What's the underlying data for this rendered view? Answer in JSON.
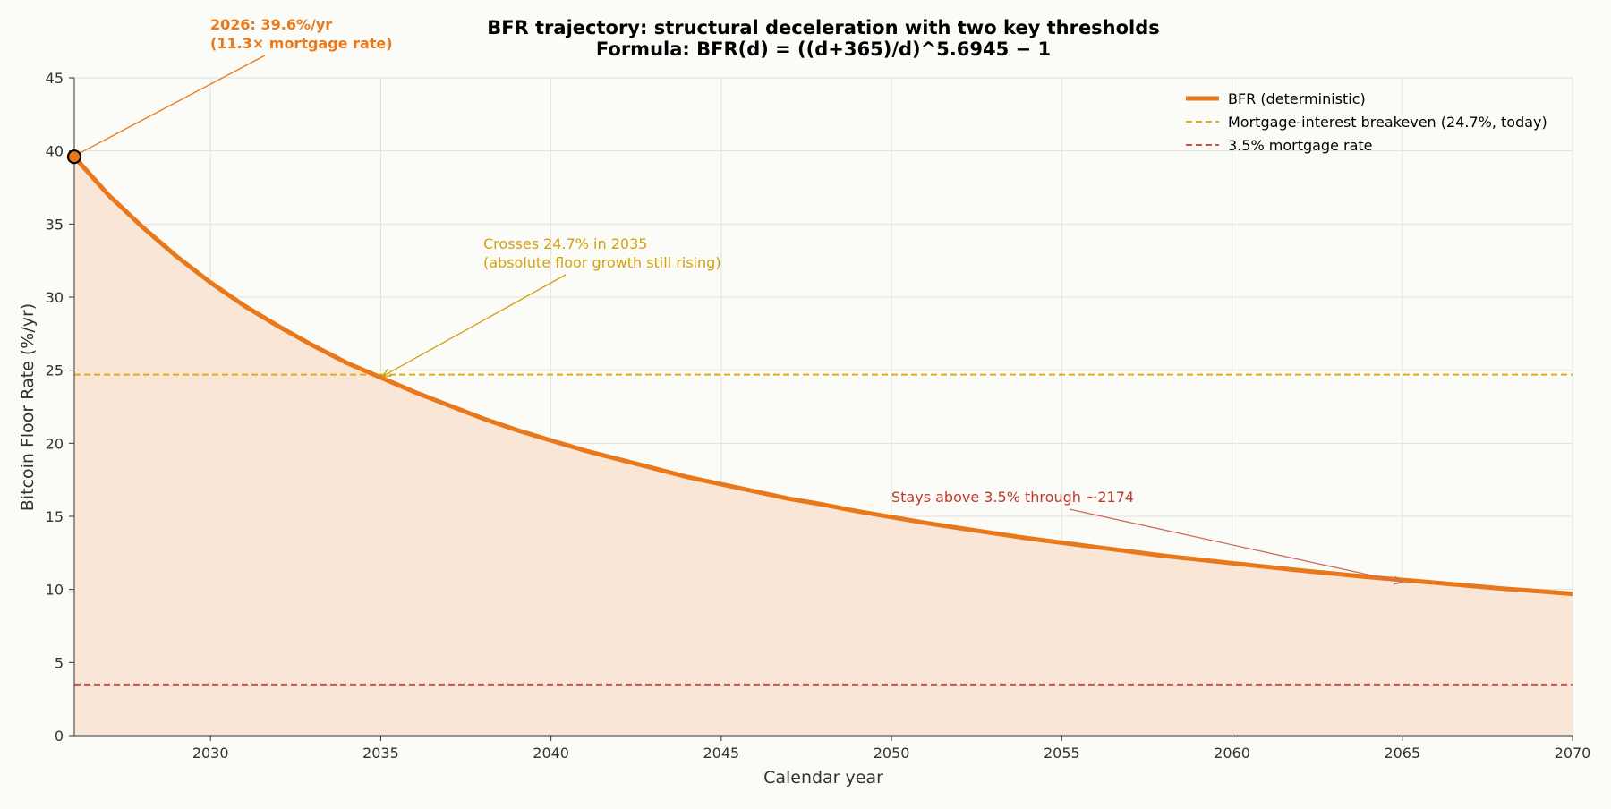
{
  "chart_data": {
    "type": "line",
    "title_line1": "BFR trajectory: structural deceleration with two key thresholds",
    "title_line2": "Formula: BFR(d) = ((d+365)/d)^5.6945 − 1",
    "xlabel": "Calendar year",
    "ylabel": "Bitcoin Floor Rate (%/yr)",
    "xlim": [
      2026,
      2070
    ],
    "ylim": [
      0,
      45
    ],
    "x_ticks": [
      2030,
      2035,
      2040,
      2045,
      2050,
      2055,
      2060,
      2065,
      2070
    ],
    "y_ticks": [
      0,
      5,
      10,
      15,
      20,
      25,
      30,
      35,
      40,
      45
    ],
    "grid": true,
    "legend_position": "top-right",
    "colors": {
      "bfr": "#e8781a",
      "fill": "#fae6d6",
      "breakeven": "#e3a91a",
      "mortgage": "#d0504a",
      "annotation_start": "#e8781a",
      "annotation_cross": "#d4a010",
      "annotation_stays": "#c0392b",
      "grid": "#e2e2dc",
      "plot_bg": "#fbfbf7"
    },
    "series": [
      {
        "name": "BFR (deterministic)",
        "style": "solid",
        "x": [
          2026,
          2027,
          2028,
          2029,
          2030,
          2031,
          2032,
          2033,
          2034,
          2035,
          2036,
          2037,
          2038,
          2039,
          2040,
          2041,
          2042,
          2043,
          2044,
          2045,
          2046,
          2047,
          2048,
          2049,
          2050,
          2051,
          2052,
          2053,
          2054,
          2055,
          2056,
          2057,
          2058,
          2059,
          2060,
          2061,
          2062,
          2063,
          2064,
          2065,
          2066,
          2067,
          2068,
          2069,
          2070
        ],
        "values": [
          39.6,
          37.0,
          34.8,
          32.8,
          31.0,
          29.4,
          28.0,
          26.7,
          25.5,
          24.5,
          23.5,
          22.6,
          21.7,
          20.9,
          20.2,
          19.5,
          18.9,
          18.3,
          17.7,
          17.2,
          16.7,
          16.2,
          15.8,
          15.35,
          14.95,
          14.55,
          14.2,
          13.85,
          13.5,
          13.2,
          12.9,
          12.6,
          12.3,
          12.05,
          11.8,
          11.55,
          11.3,
          11.08,
          10.85,
          10.65,
          10.45,
          10.25,
          10.05,
          9.88,
          9.7
        ]
      },
      {
        "name": "Mortgage-interest breakeven (24.7%, today)",
        "style": "dashed",
        "value": 24.7
      },
      {
        "name": "3.5% mortgage rate",
        "style": "dashed",
        "value": 3.5
      }
    ],
    "annotations": [
      {
        "id": "start",
        "text_line1": "2026: 39.6%/yr",
        "text_line2": "(11.3× mortgage rate)",
        "point": [
          2026,
          39.6
        ]
      },
      {
        "id": "cross",
        "text_line1": "Crosses 24.7% in 2035",
        "text_line2": "(absolute floor growth still rising)",
        "point": [
          2035,
          24.7
        ]
      },
      {
        "id": "stays",
        "text_line1": "Stays above 3.5% through ~2174",
        "text_line2": "",
        "point": [
          2065,
          10.5
        ]
      }
    ]
  }
}
